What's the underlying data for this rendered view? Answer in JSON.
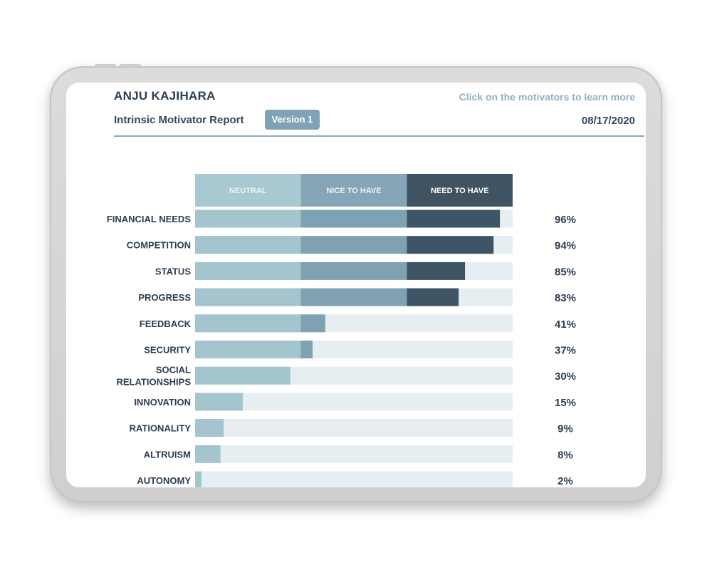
{
  "report": {
    "name": "ANJU KAJIHARA",
    "title": "Intrinsic Motivator Report",
    "version_label": "Version 1",
    "hint": "Click on the motivators to learn more",
    "date": "08/17/2020"
  },
  "colors": {
    "neutral": "#a4c4ce",
    "nice_to_have": "#7fa2b2",
    "need_to_have": "#3e5566",
    "track": "#e6eef2",
    "header_neutral": "#a8c8d2",
    "header_nice": "#85a6b6",
    "header_need": "#3f5363"
  },
  "chart_data": {
    "type": "bar",
    "orientation": "horizontal",
    "stacked_bands": [
      "NEUTRAL",
      "NICE TO HAVE",
      "NEED TO HAVE"
    ],
    "band_boundaries_percent": [
      0,
      33.3,
      66.7,
      100
    ],
    "categories": [
      "FINANCIAL NEEDS",
      "COMPETITION",
      "STATUS",
      "PROGRESS",
      "FEEDBACK",
      "SECURITY",
      "SOCIAL RELATIONSHIPS",
      "INNOVATION",
      "RATIONALITY",
      "ALTRUISM",
      "AUTONOMY"
    ],
    "values": [
      96,
      94,
      85,
      83,
      41,
      37,
      30,
      15,
      9,
      8,
      2
    ],
    "value_labels": [
      "96%",
      "94%",
      "85%",
      "83%",
      "41%",
      "37%",
      "30%",
      "15%",
      "9%",
      "8%",
      "2%"
    ],
    "xlim": [
      0,
      100
    ]
  }
}
